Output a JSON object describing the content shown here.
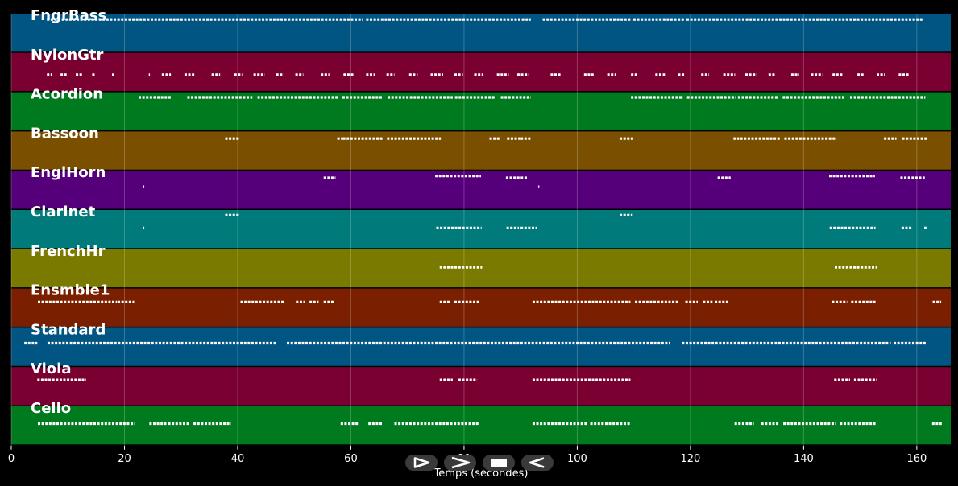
{
  "chart_data": {
    "type": "piano-roll",
    "xlabel": "Temps (secondes)",
    "xlim": [
      0,
      166
    ],
    "x_ticks": [
      0,
      20,
      40,
      60,
      80,
      100,
      120,
      140,
      160
    ],
    "grid": true,
    "tracks": [
      {
        "name": "FngrBass",
        "color": "#005582",
        "notes": [
          [
            6.3,
            62.2,
            0.08
          ],
          [
            62.7,
            91.8,
            0.08
          ],
          [
            93.9,
            109.5,
            0.08
          ],
          [
            109.9,
            119,
            0.08
          ],
          [
            119.3,
            161,
            0.08
          ]
        ]
      },
      {
        "name": "NylonGtr",
        "color": "#7a0032",
        "notes": [
          [
            6.3,
            7.2,
            0.58
          ],
          [
            8.7,
            9.8,
            0.58
          ],
          [
            11.4,
            12.6,
            0.58
          ],
          [
            14.3,
            14.8,
            0.58
          ],
          [
            17.8,
            18.2,
            0.58
          ],
          [
            24.3,
            24.5,
            0.58
          ],
          [
            26.6,
            28.2,
            0.58
          ],
          [
            30.6,
            32.4,
            0.58
          ],
          [
            35.4,
            36.9,
            0.58
          ],
          [
            39.4,
            40.8,
            0.58
          ],
          [
            42.8,
            44.8,
            0.58
          ],
          [
            46.8,
            48.2,
            0.58
          ],
          [
            50.2,
            51.6,
            0.58
          ],
          [
            54.7,
            56.2,
            0.58
          ],
          [
            58.7,
            60.7,
            0.58
          ],
          [
            62.7,
            64.2,
            0.58
          ],
          [
            66.3,
            67.7,
            0.58
          ],
          [
            70.3,
            71.8,
            0.58
          ],
          [
            74.1,
            76.3,
            0.58
          ],
          [
            78.3,
            79.8,
            0.58
          ],
          [
            81.8,
            83.3,
            0.58
          ],
          [
            85.8,
            87.9,
            0.58
          ],
          [
            89.4,
            91.4,
            0.58
          ],
          [
            95.3,
            97.3,
            0.58
          ],
          [
            101.2,
            102.9,
            0.58
          ],
          [
            105.3,
            106.8,
            0.58
          ],
          [
            109.5,
            110.6,
            0.58
          ],
          [
            113.8,
            115.5,
            0.58
          ],
          [
            117.8,
            118.9,
            0.58
          ],
          [
            121.9,
            123.3,
            0.58
          ],
          [
            125.8,
            127.9,
            0.58
          ],
          [
            129.7,
            131.8,
            0.58
          ],
          [
            133.8,
            135.1,
            0.58
          ],
          [
            137.8,
            139.2,
            0.58
          ],
          [
            141.3,
            143.3,
            0.58
          ],
          [
            145.1,
            147.2,
            0.58
          ],
          [
            149.5,
            150.8,
            0.58
          ],
          [
            152.9,
            154.4,
            0.58
          ],
          [
            156.8,
            158.8,
            0.58
          ]
        ]
      },
      {
        "name": "Acordion",
        "color": "#007a1f",
        "notes": [
          [
            22.5,
            28.4,
            0.06
          ],
          [
            31.1,
            42.6,
            0.06
          ],
          [
            43.5,
            57.8,
            0.06
          ],
          [
            58.5,
            65.5,
            0.06
          ],
          [
            66.5,
            78,
            0.06
          ],
          [
            78.4,
            85.7,
            0.06
          ],
          [
            86.5,
            91.8,
            0.06
          ],
          [
            109.5,
            118.7,
            0.06
          ],
          [
            119.4,
            128,
            0.06
          ],
          [
            128.4,
            135.5,
            0.06
          ],
          [
            136.3,
            147.4,
            0.06
          ],
          [
            148.2,
            161.5,
            0.06
          ]
        ]
      },
      {
        "name": "Bassoon",
        "color": "#7a5000",
        "notes": [
          [
            37.8,
            40.4,
            0.12
          ],
          [
            57.6,
            58.6,
            0.12
          ],
          [
            58.6,
            65.8,
            0.12
          ],
          [
            66.4,
            75.9,
            0.12
          ],
          [
            84.5,
            86.4,
            0.12
          ],
          [
            87.6,
            89.9,
            0.12
          ],
          [
            90,
            91.9,
            0.12
          ],
          [
            107.5,
            109.9,
            0.12
          ],
          [
            127.6,
            128.6,
            0.12
          ],
          [
            128.8,
            135.8,
            0.12
          ],
          [
            136.6,
            145.8,
            0.12
          ],
          [
            154.2,
            156.4,
            0.12
          ],
          [
            157.4,
            161.8,
            0.12
          ]
        ]
      },
      {
        "name": "EnglHorn",
        "color": "#55007a",
        "notes": [
          [
            23.3,
            23.5,
            0.4
          ],
          [
            55.2,
            57.3,
            0.12
          ],
          [
            74.9,
            83,
            0.06
          ],
          [
            87.4,
            91.3,
            0.12
          ],
          [
            93.1,
            93.3,
            0.4
          ],
          [
            124.8,
            127.1,
            0.12
          ],
          [
            144.5,
            152.6,
            0.06
          ],
          [
            157.1,
            161.4,
            0.12
          ]
        ]
      },
      {
        "name": "Clarinet",
        "color": "#007a7a",
        "notes": [
          [
            23.3,
            23.5,
            0.46
          ],
          [
            37.8,
            40.3,
            0.06
          ],
          [
            75.1,
            83.1,
            0.46
          ],
          [
            87.5,
            89.7,
            0.46
          ],
          [
            90,
            92.9,
            0.46
          ],
          [
            107.5,
            109.8,
            0.06
          ],
          [
            144.6,
            152.7,
            0.46
          ],
          [
            157.3,
            159.2,
            0.46
          ],
          [
            161.3,
            161.7,
            0.46
          ]
        ]
      },
      {
        "name": "FrenchHr",
        "color": "#7a7a00",
        "notes": [
          [
            75.7,
            83.2,
            0.46
          ],
          [
            145.5,
            152.9,
            0.46
          ]
        ]
      },
      {
        "name": "Ensmble1",
        "color": "#7a2000",
        "notes": [
          [
            4.7,
            18.7,
            0.32
          ],
          [
            18.8,
            21.7,
            0.32
          ],
          [
            40.5,
            48.3,
            0.32
          ],
          [
            50.3,
            51.8,
            0.32
          ],
          [
            52.7,
            54.3,
            0.32
          ],
          [
            55.2,
            57.1,
            0.32
          ],
          [
            75.7,
            77.5,
            0.32
          ],
          [
            78.3,
            82.8,
            0.32
          ],
          [
            92.1,
            109.4,
            0.32
          ],
          [
            110.2,
            118,
            0.32
          ],
          [
            119.1,
            121.3,
            0.32
          ],
          [
            122.2,
            123.9,
            0.32
          ],
          [
            124.3,
            126.8,
            0.32
          ],
          [
            145,
            147.7,
            0.32
          ],
          [
            148.4,
            152.7,
            0.32
          ],
          [
            162.8,
            164.3,
            0.32
          ]
        ]
      },
      {
        "name": "Standard",
        "color": "#005582",
        "notes": [
          [
            2.3,
            4.6,
            0.38
          ],
          [
            6.4,
            46.8,
            0.38
          ],
          [
            48.7,
            92.4,
            0.38
          ],
          [
            92.6,
            116.4,
            0.38
          ],
          [
            118.5,
            155.4,
            0.38
          ],
          [
            155.9,
            161.8,
            0.38
          ]
        ]
      },
      {
        "name": "Viola",
        "color": "#7a0032",
        "notes": [
          [
            4.6,
            13.2,
            0.3
          ],
          [
            75.7,
            78,
            0.3
          ],
          [
            79,
            82.3,
            0.3
          ],
          [
            92.1,
            109.4,
            0.3
          ],
          [
            145.4,
            148.2,
            0.3
          ],
          [
            148.9,
            152.9,
            0.3
          ]
        ]
      },
      {
        "name": "Cello",
        "color": "#007a1f",
        "notes": [
          [
            4.7,
            21.8,
            0.44
          ],
          [
            24.4,
            27.4,
            0.44
          ],
          [
            27.7,
            31.6,
            0.44
          ],
          [
            32.2,
            38.8,
            0.44
          ],
          [
            58.2,
            61.4,
            0.44
          ],
          [
            63.1,
            65.7,
            0.44
          ],
          [
            67.7,
            82.7,
            0.44
          ],
          [
            92.1,
            101.8,
            0.44
          ],
          [
            102.3,
            109.4,
            0.44
          ],
          [
            127.8,
            131.2,
            0.44
          ],
          [
            132.5,
            135.6,
            0.44
          ],
          [
            136.4,
            145.7,
            0.44
          ],
          [
            146.4,
            152.7,
            0.44
          ],
          [
            162.7,
            164.4,
            0.44
          ]
        ]
      }
    ]
  },
  "controls": {
    "play_icon": "play-icon",
    "forward_icon": "fast-forward-icon",
    "stop_icon": "stop-icon",
    "rewind_icon": "rewind-icon"
  }
}
